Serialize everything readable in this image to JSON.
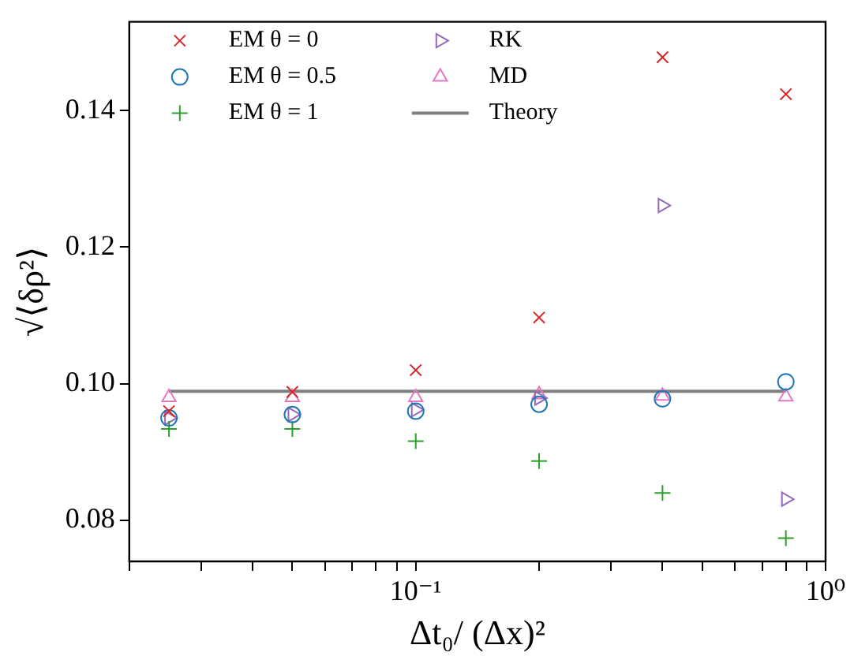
{
  "chart_data": {
    "type": "scatter",
    "xlabel": "Δt₀/ (Δx)²",
    "ylabel": "√⟨δρ²⟩",
    "log": "x",
    "grid": false,
    "legend": "top left",
    "xlim": [
      0.02,
      1
    ],
    "ylim": [
      0.074,
      0.153
    ],
    "xticks": [
      {
        "value": 0.02,
        "label": null
      },
      {
        "value": 0.03,
        "label": null
      },
      {
        "value": 0.04,
        "label": null
      },
      {
        "value": 0.05,
        "label": null
      },
      {
        "value": 0.06,
        "label": null
      },
      {
        "value": 0.07,
        "label": null
      },
      {
        "value": 0.08,
        "label": null
      },
      {
        "value": 0.09,
        "label": null
      },
      {
        "value": 0.1,
        "label": "10⁻¹"
      },
      {
        "value": 0.2,
        "label": null
      },
      {
        "value": 0.3,
        "label": null
      },
      {
        "value": 0.4,
        "label": null
      },
      {
        "value": 0.5,
        "label": null
      },
      {
        "value": 0.6,
        "label": null
      },
      {
        "value": 0.7,
        "label": null
      },
      {
        "value": 0.8,
        "label": null
      },
      {
        "value": 0.9,
        "label": null
      },
      {
        "value": 1,
        "label": "10⁰"
      }
    ],
    "yticks": [
      {
        "value": 0.08,
        "label": "0.08"
      },
      {
        "value": 0.1,
        "label": "0.10"
      },
      {
        "value": 0.12,
        "label": "0.12"
      },
      {
        "value": 0.14,
        "label": "0.14"
      }
    ],
    "x": [
      0.025,
      0.05,
      0.1,
      0.2,
      0.4,
      0.8
    ],
    "series": [
      {
        "name": "EM θ = 0",
        "color": "#d62728",
        "marker": "cross",
        "values": [
          0.096,
          0.0988,
          0.102,
          0.1097,
          0.1478,
          0.1424
        ]
      },
      {
        "name": "EM θ = 0.5",
        "color": "#1f77b4",
        "marker": "circle",
        "values": [
          0.095,
          0.0955,
          0.096,
          0.097,
          0.0978,
          0.1003
        ]
      },
      {
        "name": "EM θ = 1",
        "color": "#2ca02c",
        "marker": "plus",
        "values": [
          0.0934,
          0.0934,
          0.0916,
          0.0887,
          0.084,
          0.0774
        ]
      },
      {
        "name": "RK",
        "color": "#9467bd",
        "marker": "triangle-right",
        "values": [
          0.095,
          0.0955,
          0.0962,
          0.0979,
          0.1261,
          0.0831
        ]
      },
      {
        "name": "MD",
        "color": "#e377c2",
        "marker": "triangle",
        "values": [
          0.098,
          0.098,
          0.098,
          0.0984,
          0.0982,
          0.0981
        ]
      },
      {
        "name": "Theory",
        "type": "line",
        "color": "#7f7f7f",
        "marker": "none",
        "line_style": "solid",
        "x": [
          0.025,
          0.8
        ],
        "values": [
          0.0989,
          0.0989
        ]
      }
    ]
  }
}
